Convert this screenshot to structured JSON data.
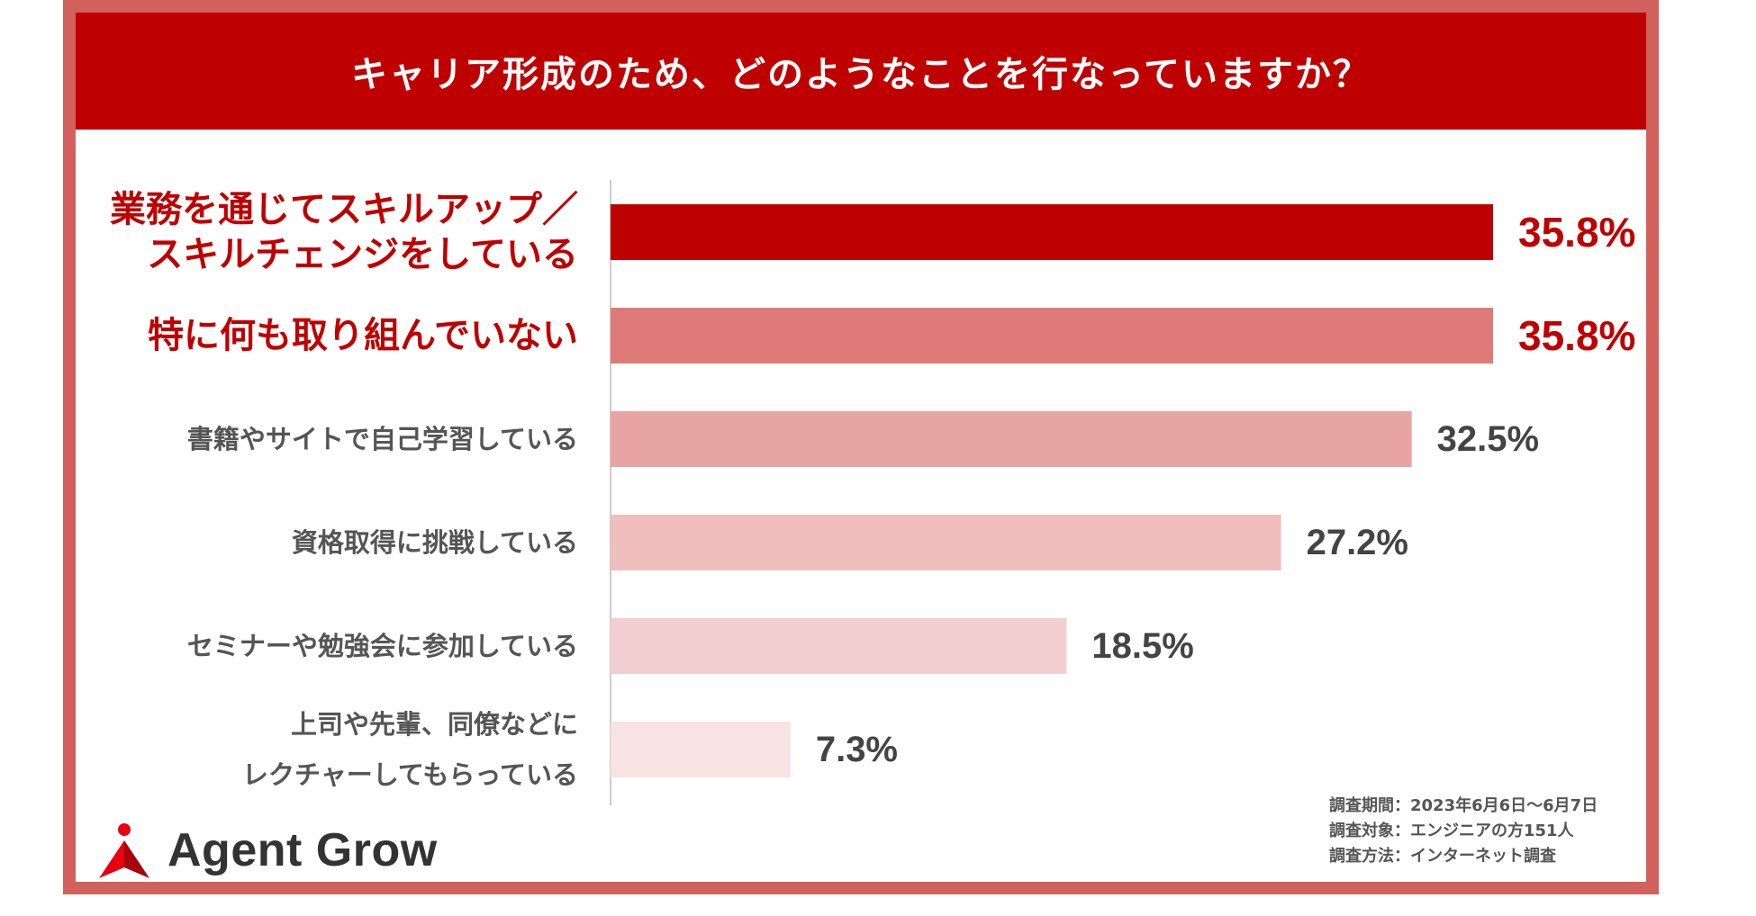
{
  "title": "キャリア形成のため、どのようなことを行なっていますか？",
  "chart_data": {
    "type": "bar",
    "orientation": "horizontal",
    "categories": [
      [
        "業務を通じてスキルアップ／",
        "スキルチェンジをしている"
      ],
      [
        "特に何も取り組んでいない"
      ],
      [
        "書籍やサイトで自己学習している"
      ],
      [
        "資格取得に挑戦している"
      ],
      [
        "セミナーや勉強会に参加している"
      ],
      [
        "上司や先輩、同僚などに",
        "レクチャーしてもらっている"
      ]
    ],
    "values": [
      35.8,
      35.8,
      32.5,
      27.2,
      18.5,
      7.3
    ],
    "value_labels": [
      "35.8%",
      "35.8%",
      "32.5%",
      "27.2%",
      "18.5%",
      "7.3%"
    ],
    "highlighted": [
      true,
      true,
      false,
      false,
      false,
      false
    ],
    "bar_colors": [
      "#bf0000",
      "#de7b79",
      "#e8a4a3",
      "#efbebd",
      "#f2cfce",
      "#f8e3e3"
    ],
    "xlim": [
      0,
      35.8
    ]
  },
  "survey": {
    "period": "調査期間：2023年6月6日〜6月7日",
    "target": "調査対象：エンジニアの方151人",
    "method": "調査方法：インターネット調査"
  },
  "logo": {
    "name": "Agent Grow",
    "icon": "agent-grow-logo-icon",
    "colors": [
      "#e60012",
      "#a8000c"
    ]
  },
  "colors": {
    "frame": "#d2615d",
    "header": "#bf0000",
    "accent_text": "#bf0000",
    "muted_text": "#555555",
    "axis": "#cccccc"
  }
}
